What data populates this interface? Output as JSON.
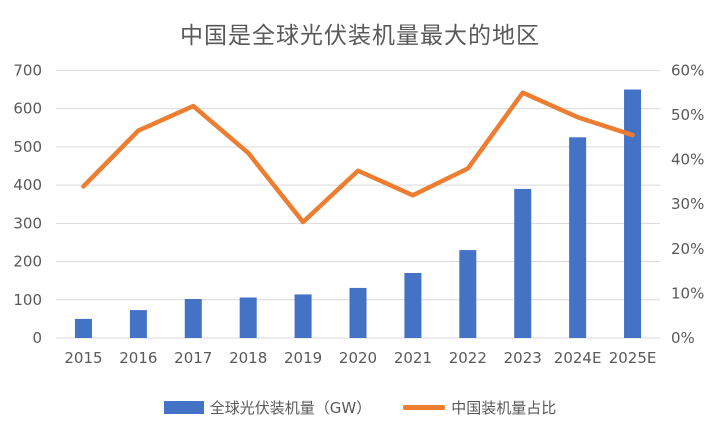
{
  "chart_data": {
    "type": "combo-bar-line",
    "title": "中国是全球光伏装机量最大的地区",
    "categories": [
      "2015",
      "2016",
      "2017",
      "2018",
      "2019",
      "2020",
      "2021",
      "2022",
      "2023",
      "2024E",
      "2025E"
    ],
    "series": [
      {
        "name": "全球光伏装机量（GW）",
        "type": "bar",
        "axis": "left",
        "color": "#4472C4",
        "values": [
          50,
          73,
          102,
          106,
          114,
          131,
          170,
          230,
          390,
          525,
          650
        ]
      },
      {
        "name": "中国装机量占比",
        "type": "line",
        "axis": "right",
        "color": "#ED7D31",
        "values": [
          34,
          46.5,
          52,
          41.5,
          26,
          37.5,
          32,
          38,
          55,
          49.5,
          45.5
        ]
      }
    ],
    "left_axis": {
      "min": 0,
      "max": 700,
      "step": 100,
      "ticks": [
        "0",
        "100",
        "200",
        "300",
        "400",
        "500",
        "600",
        "700"
      ]
    },
    "right_axis": {
      "min": 0,
      "max": 60,
      "step": 10,
      "ticks": [
        "0%",
        "10%",
        "20%",
        "30%",
        "40%",
        "50%",
        "60%"
      ],
      "unit": "%"
    },
    "grid": true,
    "legend_position": "bottom"
  },
  "colors": {
    "bar": "#4472C4",
    "line": "#ED7D31",
    "text": "#595959",
    "gridline": "#D9D9D9",
    "background": "#FFFFFF"
  }
}
